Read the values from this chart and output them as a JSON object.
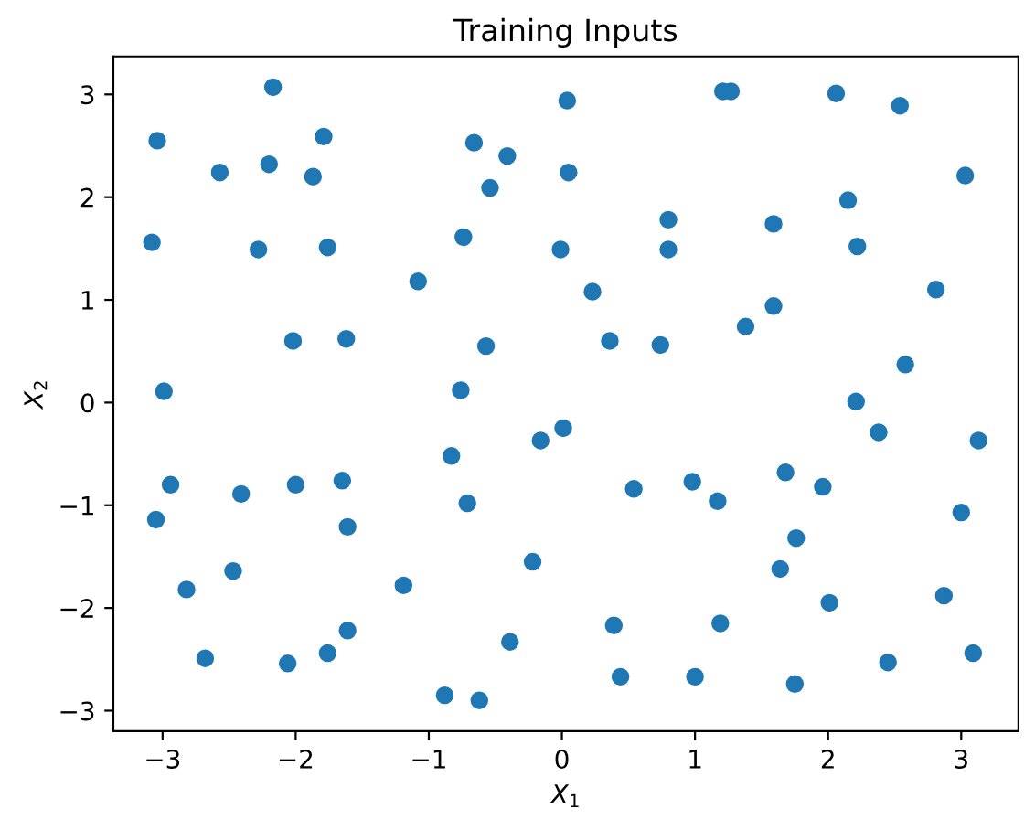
{
  "chart_data": {
    "type": "scatter",
    "title": "Training Inputs",
    "xlabel": "X$_{1}$",
    "ylabel": "X$_{2}$",
    "xlim": [
      -3.37,
      3.43
    ],
    "ylim": [
      -3.2,
      3.37
    ],
    "xticks": [
      -3,
      -2,
      -1,
      0,
      1,
      2,
      3
    ],
    "yticks": [
      -3,
      -2,
      -1,
      0,
      1,
      2,
      3
    ],
    "grid": false,
    "marker": "circle",
    "series": [
      {
        "color": "#1f77b4",
        "x": [
          -2.17,
          0.04,
          -3.04,
          -1.79,
          -0.66,
          -0.41,
          -2.57,
          -2.2,
          -1.87,
          -0.54,
          0.05,
          -3.08,
          -2.28,
          -1.76,
          -0.74,
          -0.01,
          -1.08,
          -2.02,
          -1.62,
          -0.57,
          -2.99,
          -0.76,
          1.21,
          1.27,
          2.06,
          2.54,
          3.03,
          2.15,
          0.8,
          1.59,
          0.8,
          2.22,
          0.23,
          2.81,
          1.59,
          1.38,
          0.36,
          0.74,
          2.58,
          2.21,
          0.01,
          -0.16,
          -0.83,
          -2.94,
          -2.41,
          -2.0,
          -1.65,
          -0.71,
          -3.05,
          -1.61,
          -0.22,
          -2.47,
          -2.82,
          -1.19,
          -1.61,
          -0.39,
          -2.68,
          -2.06,
          -1.76,
          -0.88,
          -0.62,
          2.38,
          3.13,
          0.54,
          0.98,
          1.17,
          1.68,
          1.96,
          3.0,
          1.76,
          1.64,
          2.87,
          2.01,
          0.39,
          1.19,
          3.09,
          2.45,
          0.44,
          1.0,
          1.75
        ],
        "values": [
          3.07,
          2.94,
          2.55,
          2.59,
          2.53,
          2.4,
          2.24,
          2.32,
          2.2,
          2.09,
          2.24,
          1.56,
          1.49,
          1.51,
          1.61,
          1.49,
          1.18,
          0.6,
          0.62,
          0.55,
          0.11,
          0.12,
          3.03,
          3.03,
          3.01,
          2.89,
          2.21,
          1.97,
          1.78,
          1.74,
          1.49,
          1.52,
          1.08,
          1.1,
          0.94,
          0.74,
          0.6,
          0.56,
          0.37,
          0.01,
          -0.25,
          -0.37,
          -0.52,
          -0.8,
          -0.89,
          -0.8,
          -0.76,
          -0.98,
          -1.14,
          -1.21,
          -1.55,
          -1.64,
          -1.82,
          -1.78,
          -2.22,
          -2.33,
          -2.49,
          -2.54,
          -2.44,
          -2.85,
          -2.9,
          -0.29,
          -0.37,
          -0.84,
          -0.77,
          -0.96,
          -0.68,
          -0.82,
          -1.07,
          -1.32,
          -1.62,
          -1.88,
          -1.95,
          -2.17,
          -2.15,
          -2.44,
          -2.53,
          -2.67,
          -2.67,
          -2.74
        ]
      }
    ]
  }
}
